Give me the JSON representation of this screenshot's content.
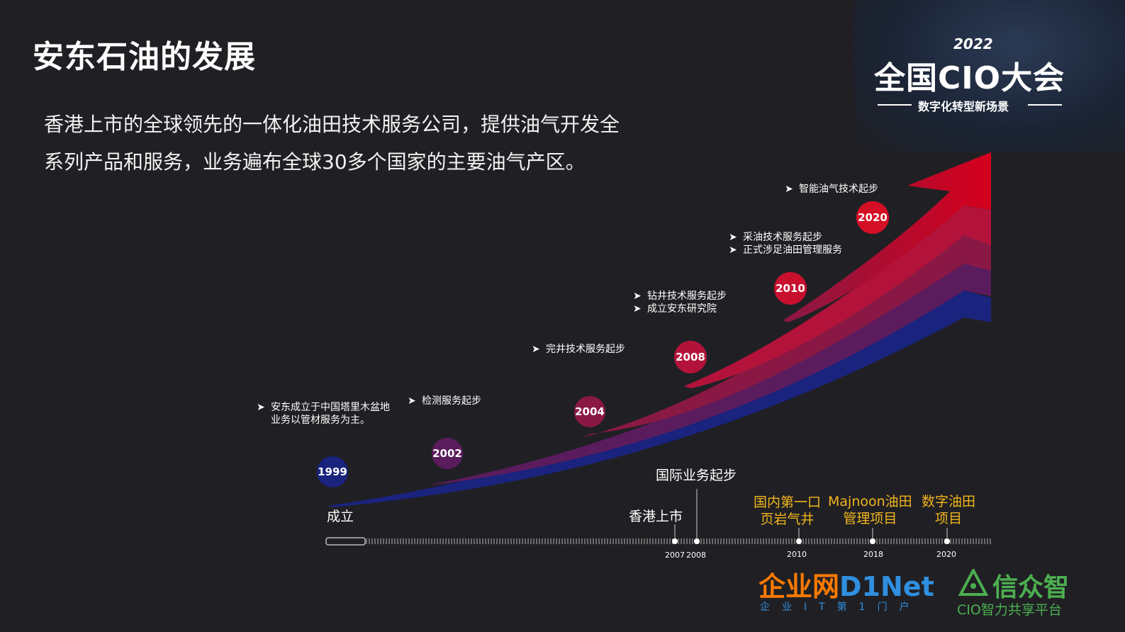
{
  "title": "安东石油的发展",
  "intro": [
    "香港上市的全球领先的一体化油田技术服务公司，提供油气开发全",
    "系列产品和服务，业务遍布全球30多个国家的主要油气产区。"
  ],
  "event_brand": {
    "year": "2022",
    "name": "全国CIO大会",
    "slogan": "数字化转型新场景"
  },
  "milestones": [
    {
      "year": "1999",
      "color": "#1a237e",
      "items": [
        "安东成立于中国塔里木盆地",
        "业务以管材服务为主。"
      ]
    },
    {
      "year": "2002",
      "color": "#5b1c5e",
      "items": [
        "检测服务起步"
      ]
    },
    {
      "year": "2004",
      "color": "#8a1844",
      "items": [
        "完井技术服务起步"
      ]
    },
    {
      "year": "2008",
      "color": "#b3133a",
      "items": [
        "钻井技术服务起步",
        "成立安东研究院"
      ]
    },
    {
      "year": "2010",
      "color": "#c8102e",
      "items": [
        "采油技术服务起步",
        "正式涉足油田管理服务"
      ]
    },
    {
      "year": "2020",
      "color": "#d50f25",
      "items": [
        "智能油气技术起步"
      ]
    }
  ],
  "timeline": {
    "start_label": "成立",
    "white_labels": [
      "香港上市",
      "国际业务起步"
    ],
    "orange_labels": [
      [
        "国内第一口",
        "页岩气井"
      ],
      [
        "Majnoon油田",
        "管理项目"
      ],
      [
        "数字油田",
        "项目"
      ]
    ],
    "years": [
      "2007",
      "2008",
      "2010",
      "2018",
      "2020"
    ]
  },
  "bullet_glyph": "➤",
  "logos": {
    "d1net_cn": "企业网",
    "d1net_en": "D1Net",
    "d1net_sub": "企业IT第1门户",
    "xzz": "信众智",
    "xzz_sub": "CIO智力共享平台"
  },
  "colors": {
    "background": "#202024",
    "orange": "#f2b51c"
  }
}
